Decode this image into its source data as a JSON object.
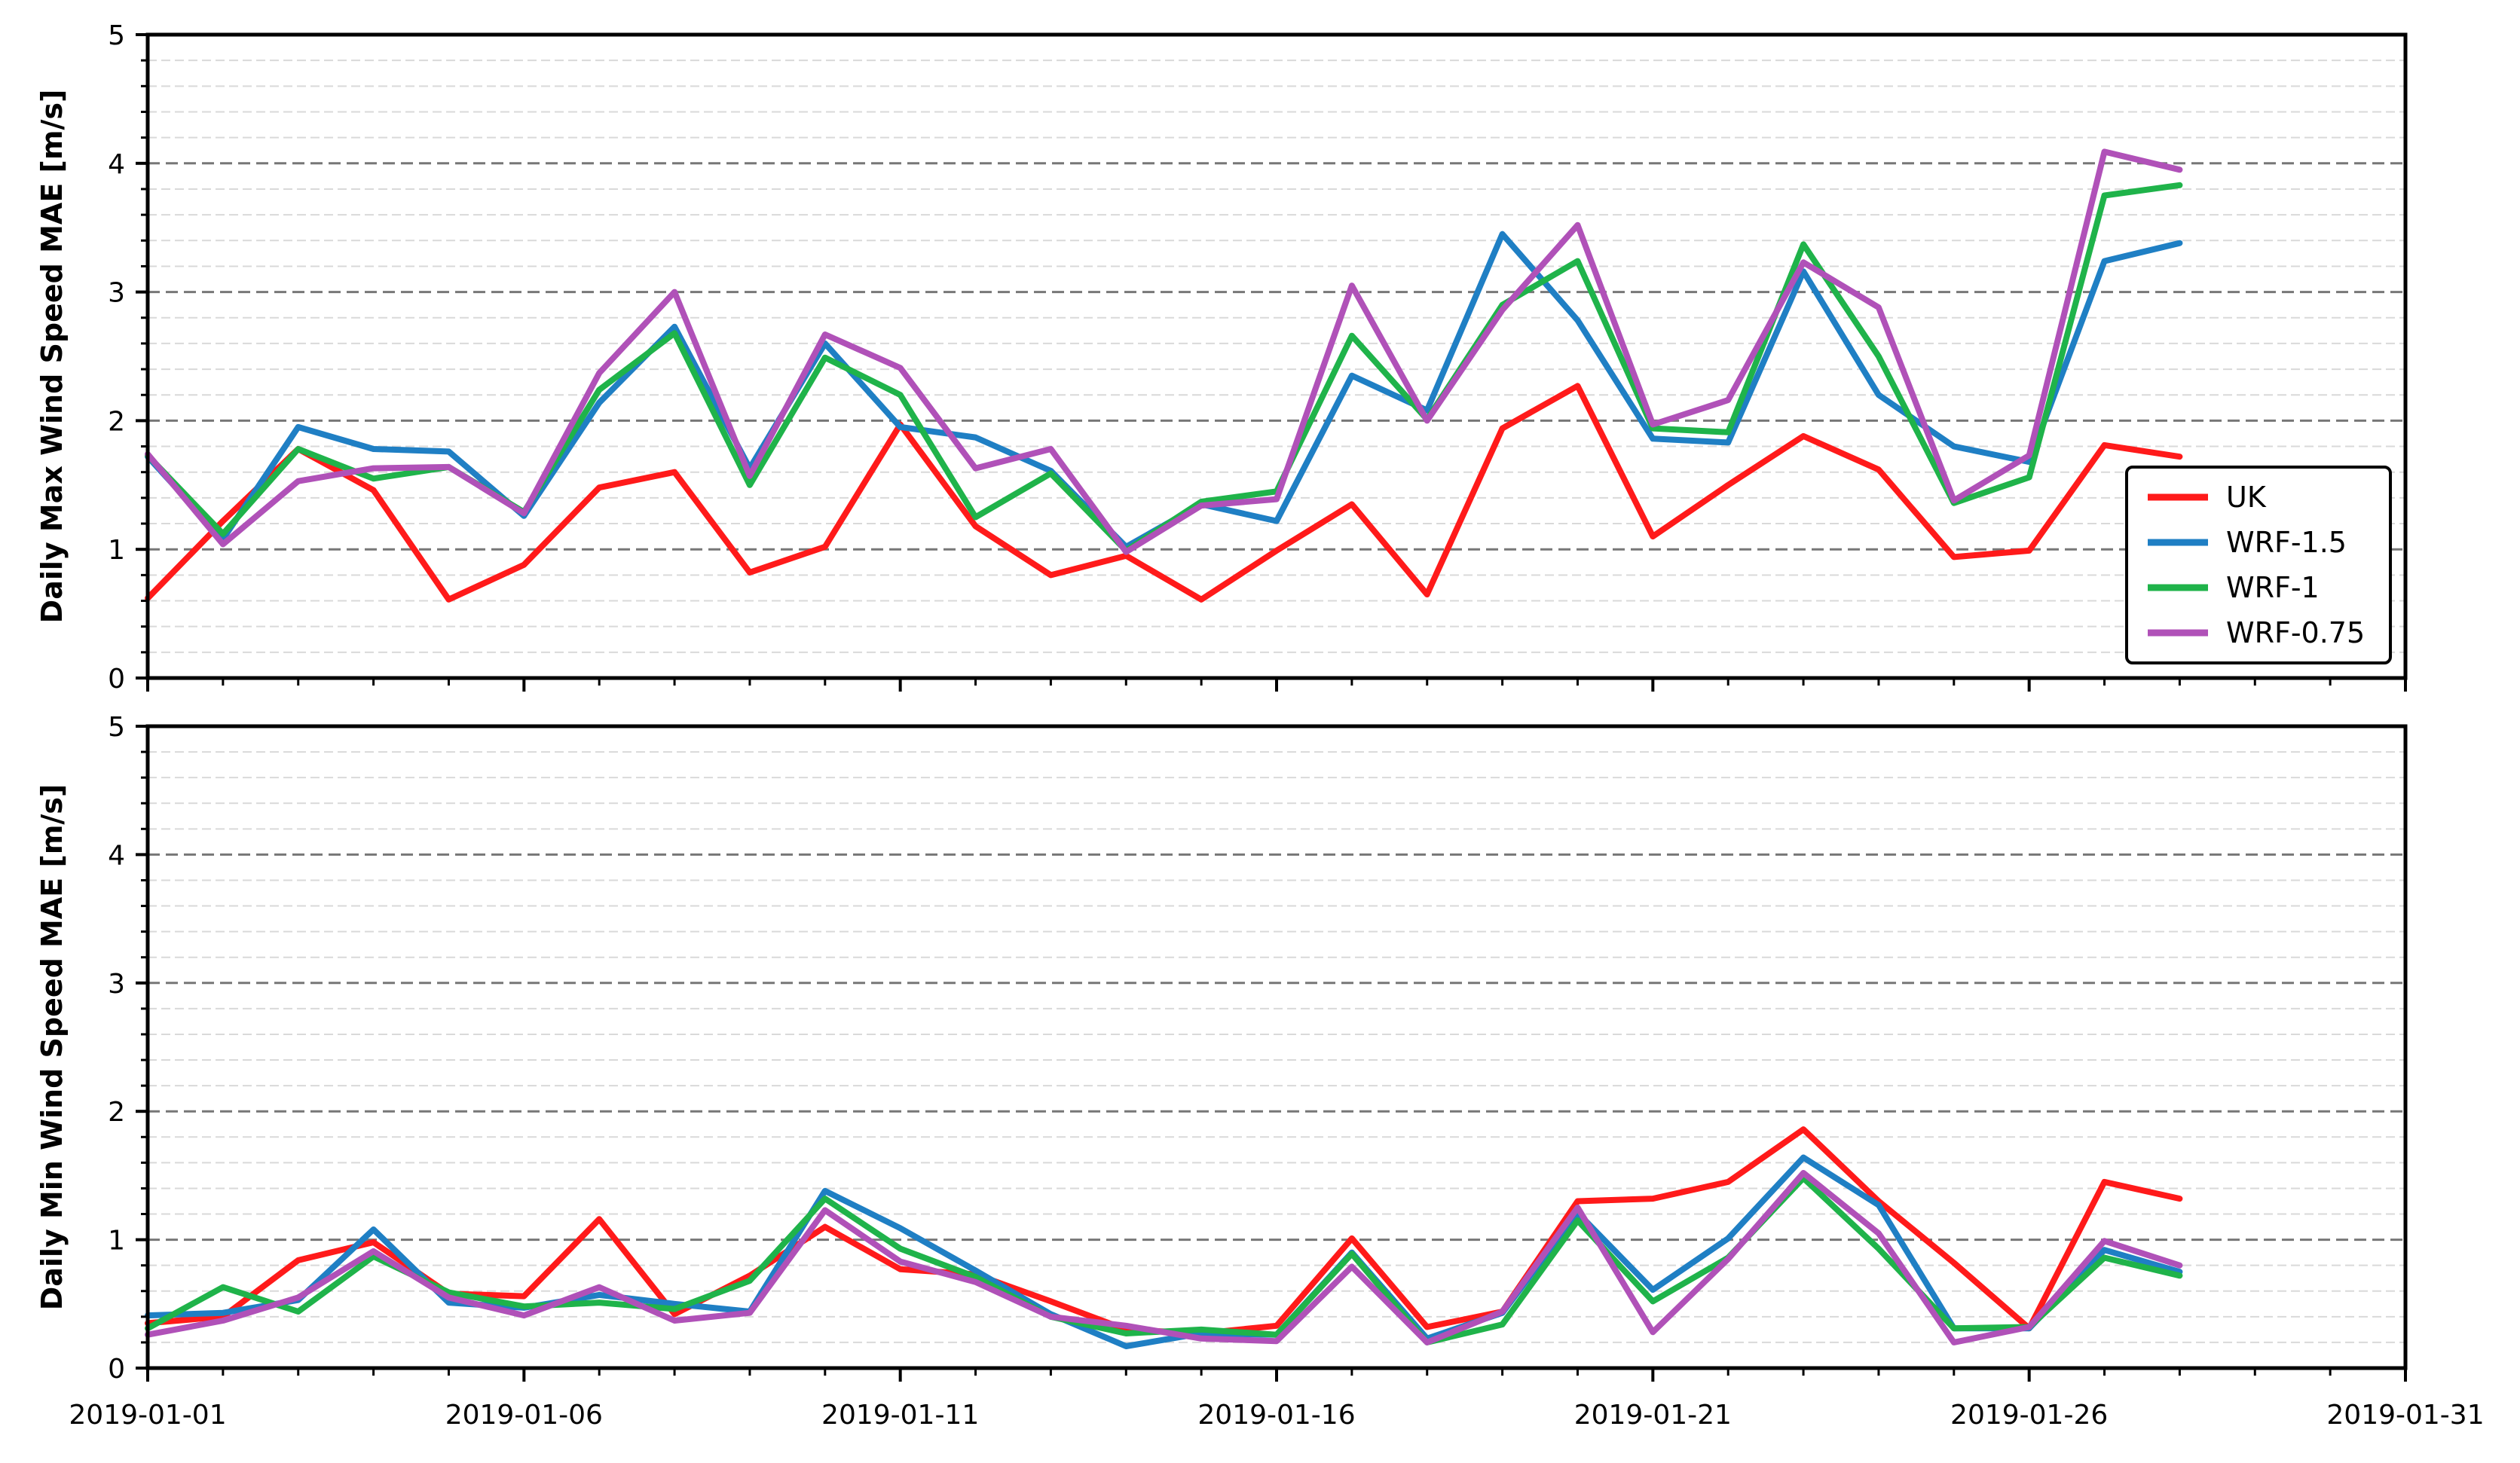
{
  "colors": {
    "UK": "#ff1a1a",
    "WRF-1.5": "#1f7fc4",
    "WRF-1": "#1fb34a",
    "WRF-0.75": "#b051b8",
    "major_grid": "#777777",
    "minor_grid": "#d9d9d9"
  },
  "chart_data": [
    {
      "type": "line",
      "ylabel": "Daily Max Wind Speed MAE [m/s]",
      "xlabel": "",
      "ylim": [
        0,
        5
      ],
      "yticks": [
        "0",
        "1",
        "2",
        "3",
        "4",
        "5"
      ],
      "x": [
        1,
        2,
        3,
        4,
        5,
        6,
        7,
        8,
        9,
        10,
        11,
        12,
        13,
        14,
        15,
        16,
        17,
        18,
        19,
        20,
        21,
        22,
        23,
        24,
        25,
        26,
        27,
        28
      ],
      "legend": {
        "placement": "lower-right",
        "entries": [
          "UK",
          "WRF-1.5",
          "WRF-1",
          "WRF-0.75"
        ]
      },
      "series": [
        {
          "name": "UK",
          "values": [
            0.62,
            1.22,
            1.78,
            1.46,
            0.61,
            0.88,
            1.48,
            1.6,
            0.82,
            1.02,
            1.97,
            1.18,
            0.8,
            0.95,
            0.61,
            0.99,
            1.35,
            0.65,
            1.94,
            2.27,
            1.1,
            1.5,
            1.88,
            1.62,
            0.94,
            0.99,
            1.81,
            1.72
          ]
        },
        {
          "name": "WRF-1.5",
          "values": [
            1.72,
            1.08,
            1.95,
            1.78,
            1.76,
            1.26,
            2.14,
            2.73,
            1.63,
            2.6,
            1.95,
            1.87,
            1.61,
            1.02,
            1.35,
            1.22,
            2.35,
            2.08,
            3.45,
            2.78,
            1.86,
            1.83,
            3.16,
            2.2,
            1.8,
            1.68,
            3.24,
            3.38
          ]
        },
        {
          "name": "WRF-1",
          "values": [
            1.73,
            1.12,
            1.78,
            1.55,
            1.64,
            1.29,
            2.24,
            2.68,
            1.5,
            2.49,
            2.2,
            1.25,
            1.59,
            0.99,
            1.37,
            1.45,
            2.66,
            2.01,
            2.9,
            3.24,
            1.94,
            1.91,
            3.37,
            2.5,
            1.36,
            1.56,
            3.75,
            3.83
          ]
        },
        {
          "name": "WRF-0.75",
          "values": [
            1.74,
            1.04,
            1.53,
            1.63,
            1.64,
            1.28,
            2.37,
            3.0,
            1.57,
            2.67,
            2.41,
            1.63,
            1.78,
            0.98,
            1.34,
            1.39,
            3.05,
            2.0,
            2.86,
            3.52,
            1.97,
            2.16,
            3.23,
            2.88,
            1.38,
            1.73,
            4.09,
            3.95
          ]
        }
      ]
    },
    {
      "type": "line",
      "ylabel": "Daily Min Wind Speed MAE [m/s]",
      "xlabel": "",
      "ylim": [
        0,
        5
      ],
      "yticks": [
        "0",
        "1",
        "2",
        "3",
        "4",
        "5"
      ],
      "x": [
        1,
        2,
        3,
        4,
        5,
        6,
        7,
        8,
        9,
        10,
        11,
        12,
        13,
        14,
        15,
        16,
        17,
        18,
        19,
        20,
        21,
        22,
        23,
        24,
        25,
        26,
        27,
        28
      ],
      "xticks": [
        "2019-01-01",
        "2019-01-06",
        "2019-01-11",
        "2019-01-16",
        "2019-01-21",
        "2019-01-26",
        "2019-01-31"
      ],
      "series": [
        {
          "name": "UK",
          "values": [
            0.35,
            0.4,
            0.84,
            0.98,
            0.58,
            0.56,
            1.16,
            0.42,
            0.72,
            1.1,
            0.77,
            0.73,
            0.52,
            0.3,
            0.27,
            0.33,
            1.01,
            0.32,
            0.44,
            1.3,
            1.32,
            1.45,
            1.86,
            1.3,
            0.82,
            0.31,
            1.45,
            1.32
          ]
        },
        {
          "name": "WRF-1.5",
          "values": [
            0.41,
            0.43,
            0.53,
            1.08,
            0.51,
            0.47,
            0.57,
            0.5,
            0.44,
            1.38,
            1.09,
            0.76,
            0.42,
            0.17,
            0.27,
            0.26,
            0.9,
            0.23,
            0.43,
            1.21,
            0.61,
            1.01,
            1.64,
            1.27,
            0.31,
            0.31,
            0.92,
            0.75
          ]
        },
        {
          "name": "WRF-1",
          "values": [
            0.31,
            0.63,
            0.44,
            0.87,
            0.59,
            0.48,
            0.51,
            0.46,
            0.68,
            1.32,
            0.93,
            0.71,
            0.4,
            0.27,
            0.3,
            0.26,
            0.89,
            0.2,
            0.34,
            1.15,
            0.52,
            0.86,
            1.48,
            0.93,
            0.31,
            0.32,
            0.86,
            0.72
          ]
        },
        {
          "name": "WRF-0.75",
          "values": [
            0.26,
            0.37,
            0.55,
            0.91,
            0.55,
            0.41,
            0.63,
            0.37,
            0.43,
            1.23,
            0.83,
            0.67,
            0.4,
            0.33,
            0.23,
            0.21,
            0.79,
            0.2,
            0.44,
            1.25,
            0.28,
            0.85,
            1.52,
            1.05,
            0.2,
            0.32,
            0.99,
            0.8
          ]
        }
      ]
    }
  ]
}
